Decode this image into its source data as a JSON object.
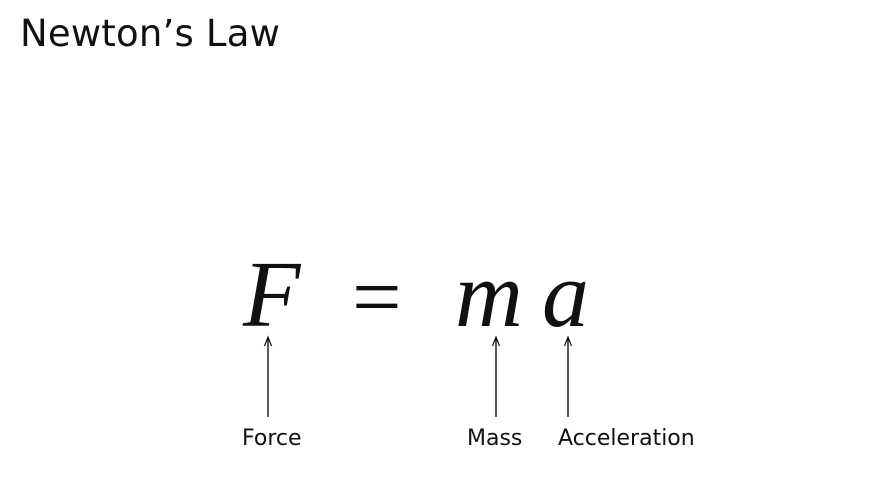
{
  "slide": {
    "title": "Newton’s Law"
  },
  "equation": {
    "force_symbol": "F",
    "equals": "=",
    "mass_symbol": "m",
    "acceleration_symbol": "a"
  },
  "labels": {
    "force": "Force",
    "mass": "Mass",
    "acceleration": "Acceleration"
  }
}
